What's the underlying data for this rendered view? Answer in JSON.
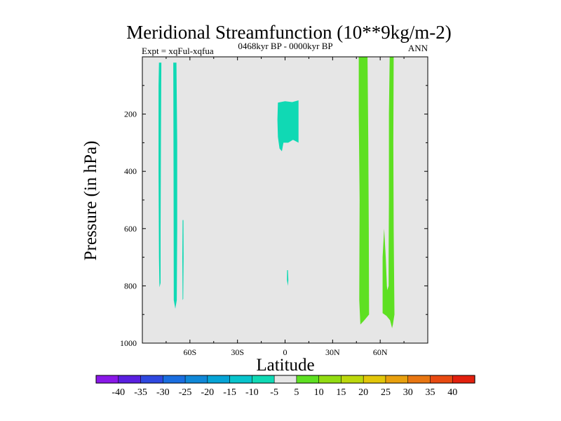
{
  "chart_data": {
    "type": "heatmap",
    "title": "Meridional Streamfunction (10**9kg/m-2)",
    "left_string": "Expt = xqFul-xqfua",
    "center_string": "0468kyr BP - 0000kyr BP",
    "right_string": "ANN",
    "xlabel": "Latitude",
    "ylabel": "Pressure (in hPa)",
    "xlim": [
      -90,
      90
    ],
    "ylim": [
      1000,
      0
    ],
    "x_ticks": [
      {
        "value": -60,
        "label": "60S"
      },
      {
        "value": -30,
        "label": "30S"
      },
      {
        "value": 0,
        "label": "0"
      },
      {
        "value": 30,
        "label": "30N"
      },
      {
        "value": 60,
        "label": "60N"
      }
    ],
    "y_ticks": [
      {
        "value": 200,
        "label": "200"
      },
      {
        "value": 400,
        "label": "400"
      },
      {
        "value": 600,
        "label": "600"
      },
      {
        "value": 800,
        "label": "800"
      },
      {
        "value": 1000,
        "label": "1000"
      }
    ],
    "background_color": "#e6e6e6",
    "colorbar": {
      "levels": [
        "-40",
        "-35",
        "-30",
        "-25",
        "-20",
        "-15",
        "-10",
        "-5",
        "5",
        "10",
        "15",
        "20",
        "25",
        "30",
        "35",
        "40"
      ],
      "colors": [
        "#8a18e8",
        "#5a1fe0",
        "#2f48e0",
        "#1a6ee0",
        "#1088d8",
        "#06a4d6",
        "#08c4cc",
        "#10d9b4",
        "#e6e6e6",
        "#5ee022",
        "#92dc12",
        "#bcd80c",
        "#e2c60a",
        "#e8a00e",
        "#e87612",
        "#e84a12",
        "#e2200e"
      ]
    },
    "regions": [
      {
        "name": "neg-sh-band-1",
        "value_range": "-10 to -5",
        "color": "#10d9b4",
        "outline": [
          [
            -79.5,
            20
          ],
          [
            -78,
            20
          ],
          [
            -78.3,
            300
          ],
          [
            -78.5,
            600
          ],
          [
            -78.5,
            790
          ],
          [
            -79.2,
            805
          ],
          [
            -79.5,
            700
          ],
          [
            -79.8,
            400
          ],
          [
            -79.8,
            100
          ]
        ]
      },
      {
        "name": "neg-sh-band-2",
        "value_range": "-10 to -5",
        "color": "#10d9b4",
        "outline": [
          [
            -70.5,
            20
          ],
          [
            -68.5,
            20
          ],
          [
            -68,
            300
          ],
          [
            -68,
            600
          ],
          [
            -68.3,
            850
          ],
          [
            -69.2,
            880
          ],
          [
            -70.2,
            850
          ],
          [
            -70.3,
            400
          ]
        ]
      },
      {
        "name": "neg-sh-band-3",
        "value_range": "-10 to -5",
        "color": "#10d9b4",
        "outline": [
          [
            -64.6,
            570
          ],
          [
            -64.1,
            570
          ],
          [
            -64,
            700
          ],
          [
            -64.2,
            845
          ],
          [
            -64.6,
            850
          ],
          [
            -64.8,
            700
          ]
        ]
      },
      {
        "name": "neg-tropical-cell",
        "value_range": "-10 to -5",
        "color": "#10d9b4",
        "outline": [
          [
            -4.5,
            160
          ],
          [
            0,
            155
          ],
          [
            4.5,
            158
          ],
          [
            8.5,
            152
          ],
          [
            8.5,
            300
          ],
          [
            5,
            290
          ],
          [
            2,
            300
          ],
          [
            -1,
            300
          ],
          [
            -2,
            330
          ],
          [
            -3.5,
            320
          ],
          [
            -4.5,
            280
          ],
          [
            -4.8,
            220
          ]
        ]
      },
      {
        "name": "neg-tropical-blob",
        "value_range": "-10 to -5",
        "color": "#10d9b4",
        "outline": [
          [
            1.3,
            745
          ],
          [
            1.8,
            745
          ],
          [
            2.1,
            780
          ],
          [
            1.8,
            800
          ],
          [
            1.2,
            780
          ]
        ]
      },
      {
        "name": "pos-nh-band-1",
        "value_range": "5 to 10",
        "color": "#5ee022",
        "outline": [
          [
            46.5,
            0
          ],
          [
            52,
            0
          ],
          [
            52.5,
            300
          ],
          [
            52.8,
            600
          ],
          [
            53,
            900
          ],
          [
            50,
            920
          ],
          [
            47.5,
            935
          ],
          [
            46.8,
            850
          ],
          [
            47,
            500
          ],
          [
            46.5,
            200
          ]
        ]
      },
      {
        "name": "pos-nh-band-2",
        "value_range": "5 to 10",
        "color": "#5ee022",
        "outline": [
          [
            66,
            0
          ],
          [
            68.5,
            0
          ],
          [
            68.3,
            300
          ],
          [
            68.5,
            600
          ],
          [
            69,
            900
          ],
          [
            68,
            935
          ],
          [
            67.5,
            948
          ],
          [
            66.2,
            920
          ],
          [
            64,
            905
          ],
          [
            61.5,
            895
          ],
          [
            61.5,
            700
          ],
          [
            62.5,
            600
          ],
          [
            63.5,
            700
          ],
          [
            64.2,
            800
          ],
          [
            64.5,
            815
          ],
          [
            65.3,
            800
          ],
          [
            65.3,
            700
          ],
          [
            65.5,
            500
          ],
          [
            65.5,
            200
          ]
        ]
      }
    ]
  }
}
